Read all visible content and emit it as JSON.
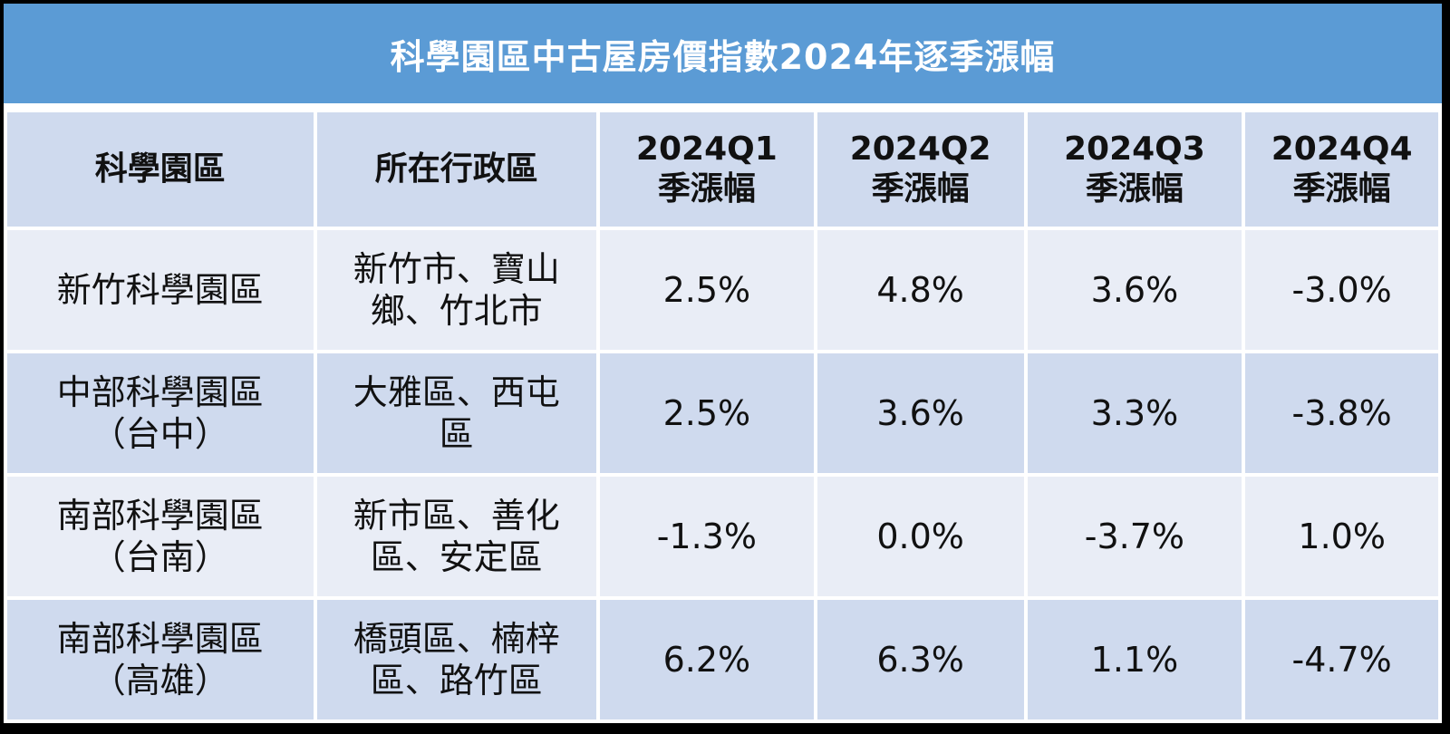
{
  "chart_data": {
    "type": "table",
    "title": "科學園區中古屋房價指數2024年逐季漲幅",
    "columns": [
      [
        "科學園區"
      ],
      [
        "所在行政區"
      ],
      [
        "2024Q1",
        "季漲幅"
      ],
      [
        "2024Q2",
        "季漲幅"
      ],
      [
        "2024Q3",
        "季漲幅"
      ],
      [
        "2024Q4",
        "季漲幅"
      ]
    ],
    "rows": [
      {
        "park": [
          "新竹科學園區"
        ],
        "district": [
          "新竹市、寶山",
          "鄉、竹北市"
        ],
        "values": [
          "2.5%",
          "4.8%",
          "3.6%",
          "-3.0%"
        ]
      },
      {
        "park": [
          "中部科學園區",
          "（台中）"
        ],
        "district": [
          "大雅區、西屯",
          "區"
        ],
        "values": [
          "2.5%",
          "3.6%",
          "3.3%",
          "-3.8%"
        ]
      },
      {
        "park": [
          "南部科學園區",
          "（台南）"
        ],
        "district": [
          "新市區、善化",
          "區、安定區"
        ],
        "values": [
          "-1.3%",
          "0.0%",
          "-3.7%",
          "1.0%"
        ]
      },
      {
        "park": [
          "南部科學園區",
          "（高雄）"
        ],
        "district": [
          "橋頭區、楠梓",
          "區、路竹區"
        ],
        "values": [
          "6.2%",
          "6.3%",
          "1.1%",
          "-4.7%"
        ]
      }
    ]
  },
  "colors": {
    "title_bg": "#5b9bd5",
    "header_bg": "#cfdaee",
    "row_light": "#e9edf6",
    "row_dark": "#cfdaee"
  }
}
